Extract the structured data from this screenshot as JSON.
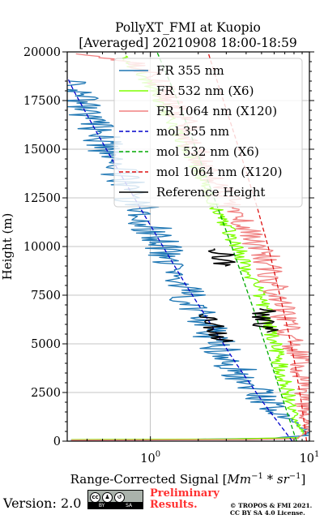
{
  "chart_data": {
    "type": "line",
    "title": "PollyXT_FMI at Kuopio",
    "subtitle": "[Averaged] 20210908 18:00-18:59",
    "xlabel": "Range-Corrected Signal [Mm^-1 * sr^-1]",
    "ylabel": "Height (m)",
    "xscale": "log",
    "xlim": [
      0.3,
      10
    ],
    "ylim": [
      0,
      20000
    ],
    "xticks": [
      {
        "value": 1,
        "label": "10",
        "sup": "0"
      },
      {
        "value": 10,
        "label": "10",
        "sup": "1"
      }
    ],
    "yticks": [
      0,
      2500,
      5000,
      7500,
      10000,
      12500,
      15000,
      17500,
      20000
    ],
    "ytick_labels": [
      "0",
      "2500",
      "5000",
      "7500",
      "10000",
      "12500",
      "15000",
      "17500",
      "20000"
    ],
    "grid": true,
    "legend_position": "top-right",
    "series": [
      {
        "name": "FR 355 nm",
        "color": "#1f77b4",
        "style": "solid",
        "noise": 0.13,
        "seed": 11,
        "points": [
          [
            0.32,
            60
          ],
          [
            2.0,
            100
          ],
          [
            6.0,
            150
          ],
          [
            9.5,
            300
          ],
          [
            9.8,
            500
          ],
          [
            8.0,
            1000
          ],
          [
            6.0,
            1600
          ],
          [
            5.0,
            2300
          ],
          [
            4.3,
            2800
          ],
          [
            3.6,
            3500
          ],
          [
            3.0,
            4300
          ],
          [
            2.6,
            5000
          ],
          [
            2.3,
            5800
          ],
          [
            2.05,
            6500
          ],
          [
            1.8,
            7200
          ],
          [
            1.6,
            8000
          ],
          [
            1.42,
            8800
          ],
          [
            1.27,
            9500
          ],
          [
            1.13,
            10200
          ],
          [
            1.0,
            11000
          ],
          [
            0.88,
            11800
          ],
          [
            0.78,
            12500
          ],
          [
            0.7,
            13300
          ],
          [
            0.62,
            14000
          ],
          [
            0.55,
            14800
          ],
          [
            0.49,
            15500
          ],
          [
            0.43,
            16300
          ],
          [
            0.39,
            17000
          ],
          [
            0.34,
            17800
          ],
          [
            0.31,
            18500
          ]
        ]
      },
      {
        "name": "FR 532 nm (X6)",
        "color": "#7fff00",
        "style": "solid",
        "noise": 0.05,
        "seed": 23,
        "points": [
          [
            0.32,
            80
          ],
          [
            3.0,
            110
          ],
          [
            8.5,
            180
          ],
          [
            9.2,
            400
          ],
          [
            8.3,
            1000
          ],
          [
            7.6,
            2000
          ],
          [
            7.0,
            3000
          ],
          [
            6.5,
            4000
          ],
          [
            6.0,
            5000
          ],
          [
            5.6,
            6000
          ],
          [
            5.2,
            7000
          ],
          [
            4.6,
            8000
          ],
          [
            4.0,
            9000
          ],
          [
            3.5,
            10000
          ],
          [
            3.0,
            11000
          ],
          [
            2.6,
            12000
          ],
          [
            2.3,
            13000
          ],
          [
            2.0,
            14000
          ],
          [
            1.7,
            15000
          ],
          [
            1.45,
            16000
          ],
          [
            1.25,
            17000
          ],
          [
            1.05,
            18000
          ],
          [
            0.85,
            19000
          ],
          [
            0.7,
            19800
          ]
        ]
      },
      {
        "name": "FR 1064 nm (X120)",
        "color": "#f08080",
        "style": "solid",
        "noise": 0.09,
        "seed": 37,
        "points": [
          [
            0.32,
            50
          ],
          [
            4.0,
            80
          ],
          [
            8.6,
            130
          ],
          [
            9.8,
            500
          ],
          [
            9.3,
            1500
          ],
          [
            10.0,
            2500
          ],
          [
            9.0,
            3500
          ],
          [
            8.0,
            5000
          ],
          [
            6.8,
            6500
          ],
          [
            6.0,
            8000
          ],
          [
            5.3,
            9500
          ],
          [
            4.3,
            10500
          ],
          [
            3.6,
            11500
          ],
          [
            3.0,
            12500
          ],
          [
            2.5,
            13500
          ],
          [
            2.05,
            14500
          ],
          [
            1.8,
            15500
          ],
          [
            1.6,
            16500
          ],
          [
            1.35,
            17500
          ],
          [
            1.1,
            18500
          ],
          [
            0.85,
            19300
          ],
          [
            0.55,
            19700
          ],
          [
            0.34,
            19900
          ]
        ]
      },
      {
        "name": "mol 355 nm",
        "color": "#0000cc",
        "style": "dashed",
        "points": [
          [
            7.8,
            0
          ],
          [
            5.1,
            2000
          ],
          [
            3.45,
            4000
          ],
          [
            2.4,
            6000
          ],
          [
            1.68,
            8000
          ],
          [
            1.2,
            10000
          ],
          [
            0.86,
            12000
          ],
          [
            0.62,
            14000
          ],
          [
            0.45,
            16000
          ],
          [
            0.33,
            18000
          ],
          [
            0.3,
            18700
          ]
        ]
      },
      {
        "name": "mol 532 nm (X6)",
        "color": "#00aa00",
        "style": "dashed",
        "points": [
          [
            8.3,
            0
          ],
          [
            6.9,
            2000
          ],
          [
            5.75,
            4000
          ],
          [
            4.8,
            6000
          ],
          [
            3.95,
            8000
          ],
          [
            3.25,
            10000
          ],
          [
            2.65,
            12000
          ],
          [
            2.15,
            14000
          ],
          [
            1.75,
            16000
          ],
          [
            1.4,
            18000
          ],
          [
            1.1,
            20000
          ]
        ]
      },
      {
        "name": "mol 1064 nm (X120)",
        "color": "#dd1111",
        "style": "dashed",
        "points": [
          [
            9.6,
            0
          ],
          [
            8.9,
            2000
          ],
          [
            8.1,
            4000
          ],
          [
            7.2,
            6000
          ],
          [
            6.3,
            8000
          ],
          [
            5.5,
            10000
          ],
          [
            4.7,
            12000
          ],
          [
            3.95,
            14000
          ],
          [
            3.3,
            16000
          ],
          [
            2.75,
            18000
          ],
          [
            2.3,
            20000
          ]
        ]
      },
      {
        "name": "Reference Height",
        "color": "#000000",
        "style": "solid",
        "noise": 0.08,
        "seed": 53,
        "segments": [
          [
            [
              2.35,
              6500
            ],
            [
              2.45,
              6200
            ],
            [
              2.55,
              5900
            ],
            [
              2.65,
              5600
            ],
            [
              2.75,
              5300
            ],
            [
              2.85,
              5100
            ]
          ],
          [
            [
              2.75,
              9900
            ],
            [
              2.8,
              9700
            ],
            [
              2.85,
              9400
            ],
            [
              2.9,
              9200
            ],
            [
              2.95,
              9000
            ]
          ],
          [
            [
              5.3,
              6800
            ],
            [
              5.2,
              6500
            ],
            [
              5.3,
              6200
            ],
            [
              5.2,
              5900
            ],
            [
              5.4,
              5600
            ]
          ]
        ]
      }
    ]
  },
  "footer": {
    "version_label": "Version: 2.0",
    "badge_by": "BY",
    "badge_sa": "SA",
    "preliminary_line1": "Preliminary",
    "preliminary_line2": "Results.",
    "copyright_line1": "© TROPOS & FMI 2021.",
    "copyright_line2": "CC BY SA 4.0 License."
  }
}
